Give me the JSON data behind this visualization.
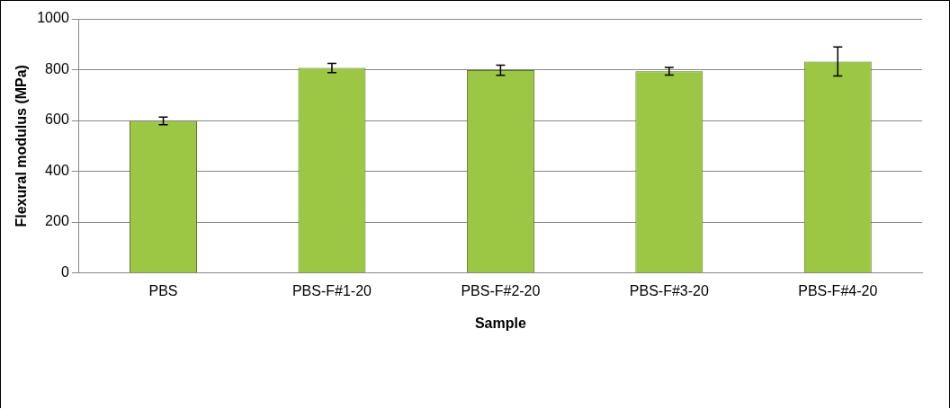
{
  "chart_data": {
    "type": "bar",
    "xlabel": "Sample",
    "ylabel": "Flexural modulus (MPa)",
    "categories": [
      "PBS",
      "PBS-F#1-20",
      "PBS-F#2-20",
      "PBS-F#3-20",
      "PBS-F#4-20"
    ],
    "values": [
      598,
      807,
      798,
      794,
      832
    ],
    "errors": [
      15,
      18,
      20,
      15,
      57
    ],
    "color": "#9bc744",
    "ylim": [
      0,
      1000
    ],
    "yticks": [
      0,
      200,
      400,
      600,
      800,
      1000
    ],
    "grid": "y"
  }
}
